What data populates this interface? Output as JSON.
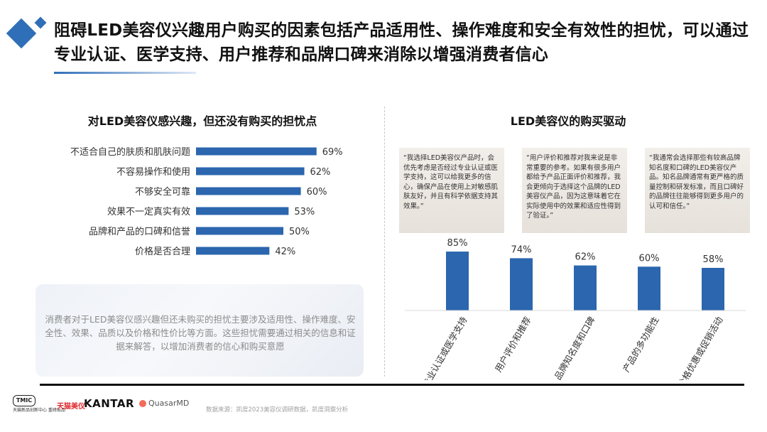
{
  "title": "阻碍LED美容仪兴趣用户购买的因素包括产品适用性、操作难度和安全有效性的担忧，可以通过专业认证、医学支持、用户推荐和品牌口碑来消除以增强消费者信心",
  "colors": {
    "accent": "#2f6fb7",
    "bar": "#2b66ae"
  },
  "left_panel": {
    "note": "消费者对于LED美容仪感兴趣但还未购买的担忧主要涉及适用性、操作难度、安全性、效果、品质以及价格和性价比等方面。这些担忧需要通过相关的信息和证据来解答，以增加消费者的信心和购买意愿"
  },
  "right_panel": {
    "quotes": [
      "“我选择LED美容仪产品时，会优先考虑是否经过专业认证或医学支持，这可以给我更多的信心，确保产品在使用上对敏感肌肤友好，并且有科学依据支持其效果。”",
      "“用户评价和推荐对我来说是非常重要的参考。如果有很多用户都给予产品正面评价和推荐，我会更倾向于选择这个品牌的LED美容仪产品，因为这意味着它在实际使用中的效果和适应性得到了验证。”",
      "“我通常会选择那些有较高品牌知名度和口碑的LED美容仪产品。知名品牌通常有更严格的质量控制和研发标准，而且口碑好的品牌往往能够得到更多用户的认可和信任。”"
    ]
  },
  "footer": {
    "tmic": "TMIC",
    "tmic_sub": "天猫新品创新中心 重磅出品",
    "brand_tmall": "天猫美仪",
    "brand_kantar": "KANTAR",
    "brand_quasar": "QuasarMD",
    "source": "数据来源：凯度2023美容仪调研数据，凯度洞察分析"
  },
  "chart_data": [
    {
      "type": "bar",
      "orientation": "horizontal",
      "title": "对LED美容仪感兴趣，但还没有购买的担忧点",
      "categories": [
        "不适合自己的肤质和肌肤问题",
        "不容易操作和使用",
        "不够安全可靠",
        "效果不一定真实有效",
        "品牌和产品的口碑和信誉",
        "价格是否合理"
      ],
      "values": [
        69,
        62,
        60,
        53,
        50,
        42
      ],
      "value_labels": [
        "69%",
        "62%",
        "60%",
        "53%",
        "50%",
        "42%"
      ],
      "unit": "%",
      "xlim": [
        0,
        100
      ],
      "grid": false,
      "legend": "none"
    },
    {
      "type": "bar",
      "orientation": "vertical",
      "title": "LED美容仪的购买驱动",
      "categories": [
        "专业认证或医学支持",
        "用户评价和推荐",
        "品牌知名度和口碑",
        "产品的多功能性",
        "价格优惠或促销活动"
      ],
      "values": [
        85,
        74,
        62,
        60,
        58
      ],
      "value_labels": [
        "85%",
        "74%",
        "62%",
        "60%",
        "58%"
      ],
      "unit": "%",
      "ylim": [
        0,
        100
      ],
      "grid": false,
      "legend": "none"
    }
  ]
}
